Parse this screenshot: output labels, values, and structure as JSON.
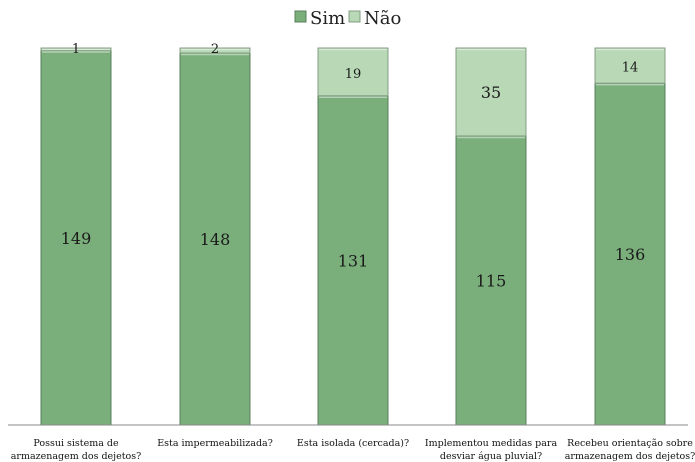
{
  "chart_data": {
    "type": "bar",
    "stacked": true,
    "categories": [
      [
        "Possui sistema de",
        "armazenagem dos dejetos?"
      ],
      [
        "Esta impermeabilizada?"
      ],
      [
        "Esta isolada (cercada)?"
      ],
      [
        "Implementou medidas para",
        "desviar água pluvial?"
      ],
      [
        "Recebeu orientação sobre",
        "armazenagem dos dejetos?"
      ]
    ],
    "series": [
      {
        "name": "Sim",
        "values": [
          149,
          148,
          131,
          115,
          136
        ],
        "color": "#7aae7b"
      },
      {
        "name": "Não",
        "values": [
          1,
          2,
          19,
          35,
          14
        ],
        "color": "#b8d8b6"
      }
    ],
    "ylim": [
      0,
      150
    ],
    "grid": false,
    "legend": "top-center"
  }
}
